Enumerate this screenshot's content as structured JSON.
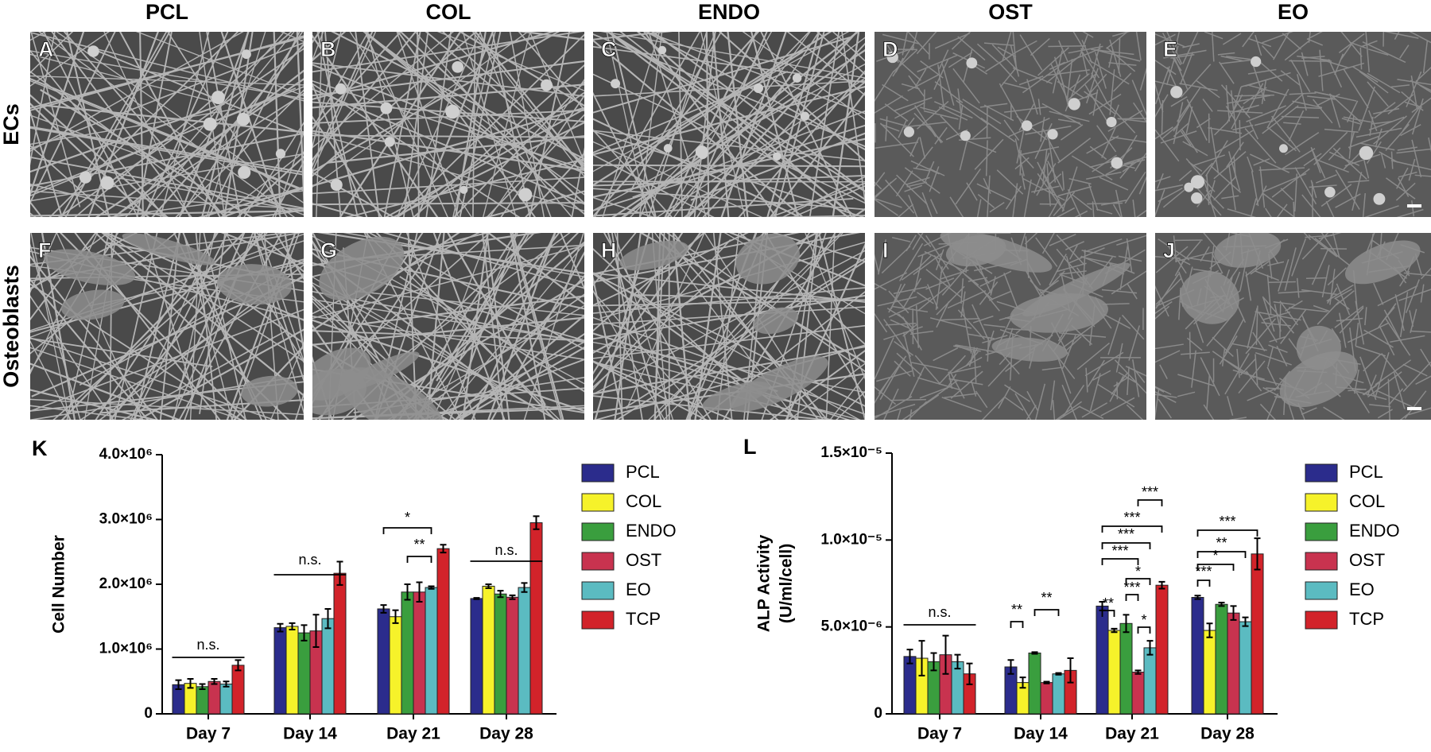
{
  "header": {
    "columns": [
      "PCL",
      "COL",
      "ENDO",
      "OST",
      "EO"
    ],
    "rows": [
      "ECs",
      "Osteoblasts"
    ]
  },
  "panels": [
    "A",
    "B",
    "C",
    "D",
    "E",
    "F",
    "G",
    "H",
    "I",
    "J"
  ],
  "chart_data": [
    {
      "type": "bar",
      "panel": "K",
      "y_label": [
        "Cell Number"
      ],
      "categories": [
        "Day 7",
        "Day 14",
        "Day 21",
        "Day 28"
      ],
      "ylim": [
        0,
        4000000
      ],
      "yticks": [
        0,
        {
          "value": 1000000,
          "label": "1.0×10⁶"
        },
        {
          "value": 2000000,
          "label": "2.0×10⁶"
        },
        {
          "value": 3000000,
          "label": "3.0×10⁶"
        },
        {
          "value": 4000000,
          "label": "4.0×10⁶"
        }
      ],
      "series": [
        {
          "name": "PCL",
          "color": "#2b2c8c",
          "values": [
            450000,
            1330000,
            1620000,
            1780000
          ],
          "errors": [
            70000,
            60000,
            60000,
            10000
          ]
        },
        {
          "name": "COL",
          "color": "#f6f22a",
          "values": [
            470000,
            1350000,
            1500000,
            1970000
          ],
          "errors": [
            70000,
            50000,
            100000,
            30000
          ]
        },
        {
          "name": "ENDO",
          "color": "#3a9e3e",
          "values": [
            420000,
            1250000,
            1880000,
            1850000
          ],
          "errors": [
            40000,
            120000,
            120000,
            50000
          ]
        },
        {
          "name": "OST",
          "color": "#c8334f",
          "values": [
            500000,
            1280000,
            1880000,
            1800000
          ],
          "errors": [
            40000,
            250000,
            150000,
            30000
          ]
        },
        {
          "name": "EO",
          "color": "#5bbbc1",
          "values": [
            460000,
            1470000,
            1950000,
            1950000
          ],
          "errors": [
            40000,
            150000,
            20000,
            70000
          ]
        },
        {
          "name": "TCP",
          "color": "#d2232a",
          "values": [
            750000,
            2170000,
            2550000,
            2950000
          ],
          "errors": [
            80000,
            180000,
            60000,
            100000
          ]
        }
      ],
      "annotations": [
        "n.s.",
        "n.s.",
        "*",
        "**",
        "n.s."
      ]
    },
    {
      "type": "bar",
      "panel": "L",
      "y_label": [
        "ALP Activity",
        "(U/ml/cell)"
      ],
      "categories": [
        "Day 7",
        "Day 14",
        "Day 21",
        "Day 28"
      ],
      "ylim": [
        0,
        1.5e-05
      ],
      "yticks": [
        0,
        {
          "value": 5e-06,
          "label": "5.0×10⁻⁶"
        },
        {
          "value": 1e-05,
          "label": "1.0×10⁻⁵"
        },
        {
          "value": 1.5e-05,
          "label": "1.5×10⁻⁵"
        }
      ],
      "series": [
        {
          "name": "PCL",
          "color": "#2b2c8c",
          "values": [
            3.3e-06,
            2.7e-06,
            6.2e-06,
            6.7e-06
          ],
          "errors": [
            4e-07,
            4e-07,
            2.5e-07,
            1e-07
          ]
        },
        {
          "name": "COL",
          "color": "#f6f22a",
          "values": [
            3.2e-06,
            1.8e-06,
            4.8e-06,
            4.8e-06
          ],
          "errors": [
            1e-06,
            3e-07,
            1e-07,
            4e-07
          ]
        },
        {
          "name": "ENDO",
          "color": "#3a9e3e",
          "values": [
            3e-06,
            3.5e-06,
            5.2e-06,
            6.3e-06
          ],
          "errors": [
            5e-07,
            5e-08,
            5e-07,
            1e-07
          ]
        },
        {
          "name": "OST",
          "color": "#c8334f",
          "values": [
            3.4e-06,
            1.8e-06,
            2.4e-06,
            5.8e-06
          ],
          "errors": [
            1.1e-06,
            5e-08,
            1e-07,
            4e-07
          ]
        },
        {
          "name": "EO",
          "color": "#5bbbc1",
          "values": [
            3e-06,
            2.3e-06,
            3.8e-06,
            5.3e-06
          ],
          "errors": [
            4e-07,
            5e-08,
            4e-07,
            2.5e-07
          ]
        },
        {
          "name": "TCP",
          "color": "#d2232a",
          "values": [
            2.3e-06,
            2.5e-06,
            7.4e-06,
            9.2e-06
          ],
          "errors": [
            6e-07,
            7e-07,
            2e-07,
            9e-07
          ]
        }
      ],
      "annotations": [
        "n.s.",
        "**",
        "**",
        "***",
        "***",
        "***",
        "***",
        "*",
        "***",
        "**",
        "*",
        "***",
        "**",
        "*",
        "***"
      ]
    }
  ]
}
